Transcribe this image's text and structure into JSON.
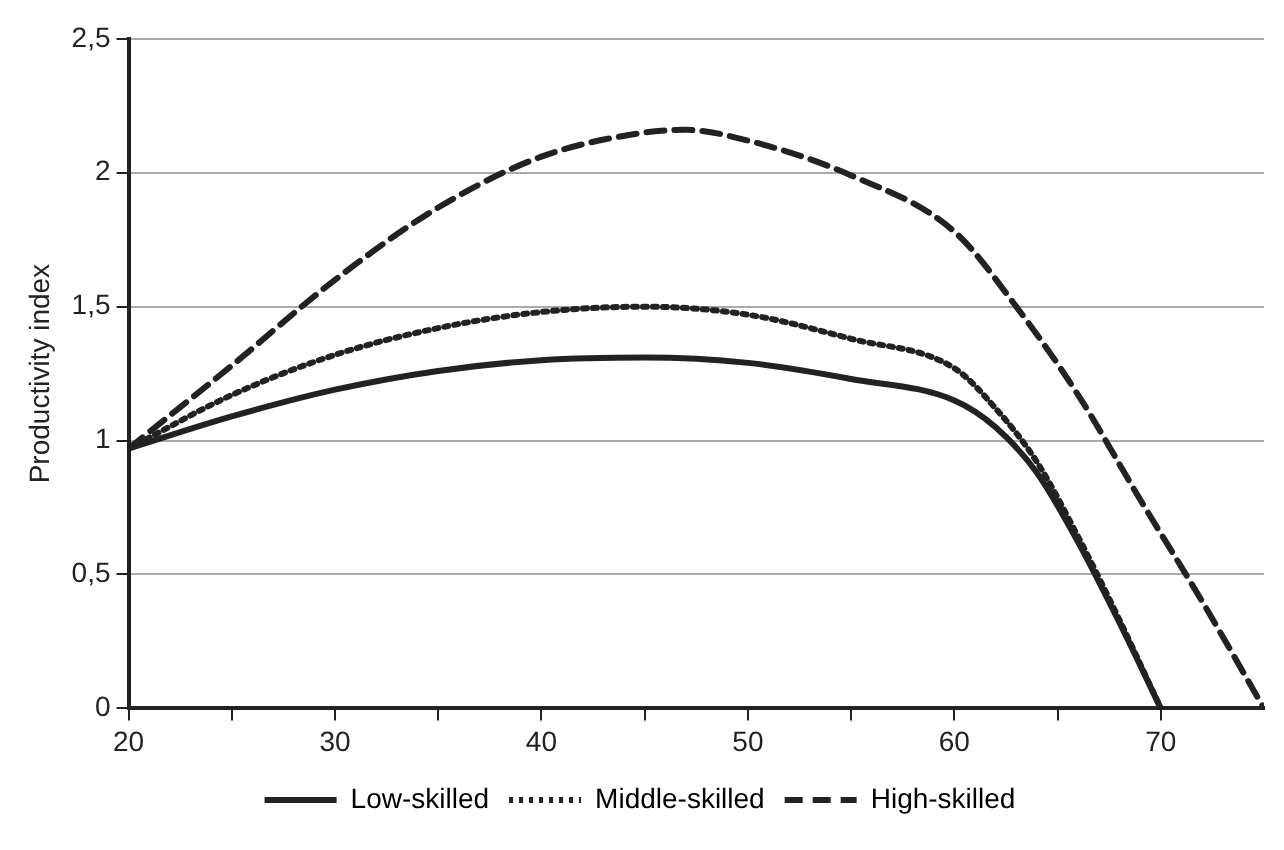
{
  "chart_data": {
    "type": "line",
    "ylabel": "Productivity index",
    "xlim": [
      20,
      75
    ],
    "ylim": [
      0,
      2.5
    ],
    "xticks": [
      20,
      {
        "value": 25,
        "label": null
      },
      30,
      {
        "value": 35,
        "label": null
      },
      40,
      {
        "value": 45,
        "label": null
      },
      50,
      {
        "value": 55,
        "label": null
      },
      60,
      {
        "value": 65,
        "label": null
      },
      70
    ],
    "yticks": [
      0,
      {
        "value": 0.5,
        "label": "0,5"
      },
      1,
      {
        "value": 1.5,
        "label": "1,5"
      },
      2,
      {
        "value": 2.5,
        "label": "2,5"
      }
    ],
    "grid": "y",
    "legend": "bottom",
    "marker": "none",
    "series": [
      {
        "name": "Low-skilled",
        "color": "#222222",
        "line_style": "solid",
        "x": [
          20,
          25,
          30,
          35,
          40,
          45,
          50,
          55,
          60,
          62,
          64,
          66,
          68,
          70
        ],
        "values": [
          0.97,
          1.09,
          1.19,
          1.26,
          1.3,
          1.31,
          1.29,
          1.23,
          1.15,
          1.05,
          0.88,
          0.62,
          0.32,
          0
        ]
      },
      {
        "name": "Middle-skilled",
        "color": "#222222",
        "line_style": "dotted",
        "x": [
          20,
          25,
          30,
          35,
          40,
          45,
          50,
          55,
          60,
          62,
          64,
          66,
          68,
          70
        ],
        "values": [
          0.97,
          1.17,
          1.32,
          1.42,
          1.48,
          1.5,
          1.47,
          1.38,
          1.27,
          1.12,
          0.92,
          0.64,
          0.33,
          0
        ]
      },
      {
        "name": "High-skilled",
        "color": "#222222",
        "line_style": "dashed",
        "x": [
          20,
          25,
          30,
          35,
          40,
          45,
          47,
          50,
          55,
          60,
          63,
          66,
          69,
          72,
          75
        ],
        "values": [
          0.97,
          1.28,
          1.6,
          1.87,
          2.06,
          2.15,
          2.16,
          2.12,
          1.99,
          1.78,
          1.5,
          1.17,
          0.78,
          0.4,
          0
        ]
      }
    ]
  }
}
